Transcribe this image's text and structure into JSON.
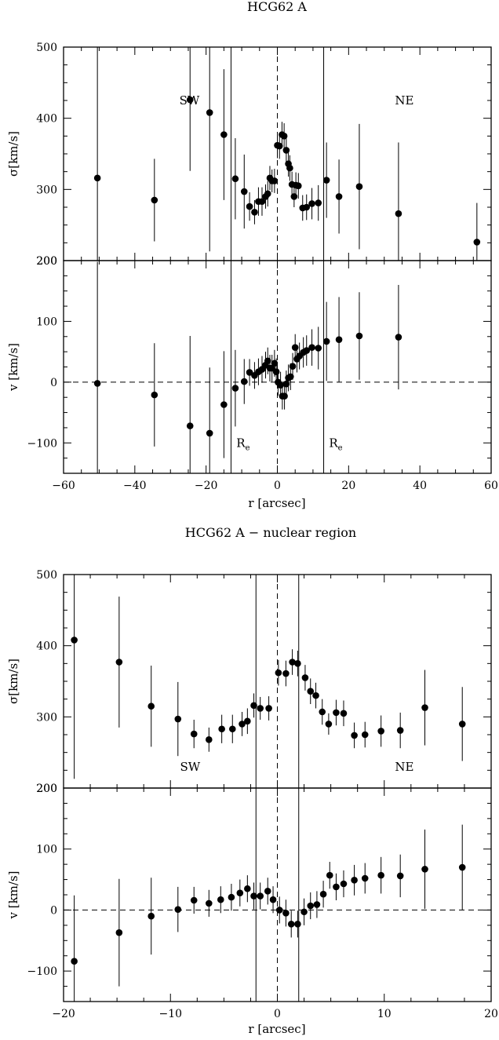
{
  "chart_data": [
    {
      "type": "scatter",
      "title": "HCG62 A",
      "xlabel": "r [arcsec]",
      "xlim": [
        -60,
        60
      ],
      "xticks": [
        -60,
        -40,
        -20,
        0,
        20,
        40,
        60
      ],
      "xtick_labels": [
        "−60",
        "−40",
        "−20",
        "0",
        "20",
        "40",
        "60"
      ],
      "panels": [
        {
          "id": "sigma",
          "ylabel": "σ[km/s]",
          "ylim": [
            200,
            500
          ],
          "yticks": [
            200,
            300,
            400,
            500
          ],
          "ytick_labels": [
            "200",
            "300",
            "400",
            "500"
          ],
          "annotations": [
            {
              "text": "SW",
              "x": -27.5,
              "y": 425
            },
            {
              "text": "NE",
              "x": 33,
              "y": 425
            }
          ],
          "vlines": [
            {
              "x": -13,
              "style": "solid"
            },
            {
              "x": 0,
              "style": "dashed"
            },
            {
              "x": 13,
              "style": "solid"
            }
          ],
          "points": [
            {
              "x": -50.5,
              "y": 316,
              "err": 200
            },
            {
              "x": -34.5,
              "y": 285,
              "err": 58
            },
            {
              "x": -24.5,
              "y": 426,
              "err": 100
            },
            {
              "x": -19,
              "y": 408,
              "err": 195
            },
            {
              "x": -15,
              "y": 377,
              "err": 92
            },
            {
              "x": -11.8,
              "y": 315,
              "err": 57
            },
            {
              "x": -9.3,
              "y": 297,
              "err": 52
            },
            {
              "x": -7.8,
              "y": 276,
              "err": 20
            },
            {
              "x": -6.4,
              "y": 268,
              "err": 17
            },
            {
              "x": -5.3,
              "y": 283,
              "err": 20
            },
            {
              "x": -4.3,
              "y": 283,
              "err": 20
            },
            {
              "x": -3.3,
              "y": 290,
              "err": 17
            },
            {
              "x": -2.7,
              "y": 294,
              "err": 18
            },
            {
              "x": -2.1,
              "y": 316,
              "err": 17
            },
            {
              "x": -1.5,
              "y": 312,
              "err": 16
            },
            {
              "x": -0.8,
              "y": 312,
              "err": 17
            },
            {
              "x": 0,
              "y": 362,
              "err": 18
            },
            {
              "x": 0.6,
              "y": 361,
              "err": 18
            },
            {
              "x": 1.3,
              "y": 377,
              "err": 18
            },
            {
              "x": 1.9,
              "y": 375,
              "err": 18
            },
            {
              "x": 2.5,
              "y": 355,
              "err": 18
            },
            {
              "x": 3.1,
              "y": 336,
              "err": 18
            },
            {
              "x": 3.5,
              "y": 330,
              "err": 18
            },
            {
              "x": 4.1,
              "y": 307,
              "err": 18
            },
            {
              "x": 4.7,
              "y": 290,
              "err": 15
            },
            {
              "x": 5.2,
              "y": 306,
              "err": 18
            },
            {
              "x": 5.9,
              "y": 305,
              "err": 18
            },
            {
              "x": 7.1,
              "y": 274,
              "err": 18
            },
            {
              "x": 8.2,
              "y": 275,
              "err": 18
            },
            {
              "x": 9.7,
              "y": 280,
              "err": 22
            },
            {
              "x": 11.5,
              "y": 281,
              "err": 25
            },
            {
              "x": 13.8,
              "y": 313,
              "err": 53
            },
            {
              "x": 17.3,
              "y": 290,
              "err": 52
            },
            {
              "x": 23,
              "y": 304,
              "err": 88
            },
            {
              "x": 34,
              "y": 266,
              "err": 100
            },
            {
              "x": 56,
              "y": 226,
              "err": 55
            }
          ]
        },
        {
          "id": "velocity",
          "ylabel": "v [km/s]",
          "ylim": [
            -150,
            200
          ],
          "yticks": [
            -100,
            0,
            100,
            200
          ],
          "ytick_labels": [
            "−100",
            "0",
            "100",
            "200"
          ],
          "annotations": [
            {
              "text": "R",
              "sub": "e",
              "x": -11.5,
              "y": -100
            },
            {
              "text": "R",
              "sub": "e",
              "x": 14.5,
              "y": -100
            }
          ],
          "vlines": [
            {
              "x": -13,
              "style": "solid"
            },
            {
              "x": 0,
              "style": "dashed"
            },
            {
              "x": 13,
              "style": "solid"
            }
          ],
          "hlines": [
            {
              "y": 0,
              "style": "dashed"
            }
          ],
          "points": [
            {
              "x": -50.5,
              "y": -2,
              "err": 200
            },
            {
              "x": -34.5,
              "y": -21,
              "err": 85
            },
            {
              "x": -24.5,
              "y": -72,
              "err": 148
            },
            {
              "x": -19,
              "y": -84,
              "err": 108
            },
            {
              "x": -15,
              "y": -37,
              "err": 88
            },
            {
              "x": -11.8,
              "y": -10,
              "err": 63
            },
            {
              "x": -9.3,
              "y": 1,
              "err": 37
            },
            {
              "x": -7.8,
              "y": 16,
              "err": 22
            },
            {
              "x": -6.4,
              "y": 11,
              "err": 22
            },
            {
              "x": -5.3,
              "y": 17,
              "err": 22
            },
            {
              "x": -4.3,
              "y": 21,
              "err": 22
            },
            {
              "x": -3.3,
              "y": 28,
              "err": 22
            },
            {
              "x": -2.7,
              "y": 35,
              "err": 22
            },
            {
              "x": -2.1,
              "y": 23,
              "err": 22
            },
            {
              "x": -1.5,
              "y": 23,
              "err": 22
            },
            {
              "x": -0.8,
              "y": 31,
              "err": 22
            },
            {
              "x": -0.3,
              "y": 17,
              "err": 22
            },
            {
              "x": 0.2,
              "y": 0,
              "err": 22
            },
            {
              "x": 0.9,
              "y": -5,
              "err": 22
            },
            {
              "x": 1.4,
              "y": -23,
              "err": 22
            },
            {
              "x": 2,
              "y": -23,
              "err": 22
            },
            {
              "x": 2.5,
              "y": -3,
              "err": 22
            },
            {
              "x": 3.1,
              "y": 7,
              "err": 22
            },
            {
              "x": 3.7,
              "y": 9,
              "err": 22
            },
            {
              "x": 4.3,
              "y": 26,
              "err": 22
            },
            {
              "x": 5,
              "y": 57,
              "err": 22
            },
            {
              "x": 5.5,
              "y": 38,
              "err": 22
            },
            {
              "x": 6.2,
              "y": 43,
              "err": 22
            },
            {
              "x": 7.3,
              "y": 49,
              "err": 25
            },
            {
              "x": 8.2,
              "y": 52,
              "err": 25
            },
            {
              "x": 9.7,
              "y": 57,
              "err": 30
            },
            {
              "x": 11.5,
              "y": 56,
              "err": 35
            },
            {
              "x": 13.8,
              "y": 67,
              "err": 65
            },
            {
              "x": 17.3,
              "y": 70,
              "err": 70
            },
            {
              "x": 23,
              "y": 76,
              "err": 72
            },
            {
              "x": 34,
              "y": 74,
              "err": 86
            }
          ]
        }
      ]
    },
    {
      "type": "scatter",
      "title": "HCG62 A − nuclear region",
      "xlabel": "r [arcsec]",
      "xlim": [
        -20,
        20
      ],
      "xticks": [
        -20,
        -10,
        0,
        10,
        20
      ],
      "xtick_labels": [
        "−20",
        "−10",
        "0",
        "10",
        "20"
      ],
      "panels": [
        {
          "id": "sigma",
          "ylabel": "σ[km/s]",
          "ylim": [
            200,
            500
          ],
          "yticks": [
            200,
            300,
            400,
            500
          ],
          "ytick_labels": [
            "200",
            "300",
            "400",
            "500"
          ],
          "annotations": [
            {
              "text": "SW",
              "x": -9.1,
              "y": 230
            },
            {
              "text": "NE",
              "x": 11,
              "y": 230
            }
          ],
          "vlines": [
            {
              "x": -2,
              "style": "solid"
            },
            {
              "x": 0,
              "style": "dashed"
            },
            {
              "x": 2,
              "style": "solid"
            }
          ],
          "points": [
            {
              "x": -19,
              "y": 408,
              "err": 195
            },
            {
              "x": -14.8,
              "y": 377,
              "err": 92
            },
            {
              "x": -11.8,
              "y": 315,
              "err": 57
            },
            {
              "x": -9.3,
              "y": 297,
              "err": 52
            },
            {
              "x": -7.8,
              "y": 276,
              "err": 20
            },
            {
              "x": -6.4,
              "y": 268,
              "err": 17
            },
            {
              "x": -5.2,
              "y": 283,
              "err": 20
            },
            {
              "x": -4.2,
              "y": 283,
              "err": 20
            },
            {
              "x": -3.3,
              "y": 290,
              "err": 17
            },
            {
              "x": -2.8,
              "y": 294,
              "err": 18
            },
            {
              "x": -2.2,
              "y": 316,
              "err": 17
            },
            {
              "x": -1.6,
              "y": 312,
              "err": 16
            },
            {
              "x": -0.8,
              "y": 312,
              "err": 17
            },
            {
              "x": 0.1,
              "y": 362,
              "err": 18
            },
            {
              "x": 0.8,
              "y": 361,
              "err": 18
            },
            {
              "x": 1.4,
              "y": 377,
              "err": 18
            },
            {
              "x": 1.9,
              "y": 375,
              "err": 18
            },
            {
              "x": 2.6,
              "y": 355,
              "err": 18
            },
            {
              "x": 3.1,
              "y": 336,
              "err": 18
            },
            {
              "x": 3.6,
              "y": 330,
              "err": 18
            },
            {
              "x": 4.2,
              "y": 307,
              "err": 18
            },
            {
              "x": 4.8,
              "y": 290,
              "err": 15
            },
            {
              "x": 5.5,
              "y": 306,
              "err": 18
            },
            {
              "x": 6.2,
              "y": 305,
              "err": 18
            },
            {
              "x": 7.2,
              "y": 274,
              "err": 18
            },
            {
              "x": 8.2,
              "y": 275,
              "err": 18
            },
            {
              "x": 9.7,
              "y": 280,
              "err": 22
            },
            {
              "x": 11.5,
              "y": 281,
              "err": 25
            },
            {
              "x": 13.8,
              "y": 313,
              "err": 53
            },
            {
              "x": 17.3,
              "y": 290,
              "err": 52
            }
          ]
        },
        {
          "id": "velocity",
          "ylabel": "v [km/s]",
          "ylim": [
            -150,
            200
          ],
          "yticks": [
            -100,
            0,
            100,
            200
          ],
          "ytick_labels": [
            "−100",
            "0",
            "100",
            "200"
          ],
          "annotations": [],
          "vlines": [
            {
              "x": -2,
              "style": "solid"
            },
            {
              "x": 0,
              "style": "dashed"
            },
            {
              "x": 2,
              "style": "solid"
            }
          ],
          "hlines": [
            {
              "y": 0,
              "style": "dashed"
            }
          ],
          "points": [
            {
              "x": -19,
              "y": -84,
              "err": 108
            },
            {
              "x": -14.8,
              "y": -37,
              "err": 88
            },
            {
              "x": -11.8,
              "y": -10,
              "err": 63
            },
            {
              "x": -9.3,
              "y": 1,
              "err": 37
            },
            {
              "x": -7.8,
              "y": 16,
              "err": 22
            },
            {
              "x": -6.4,
              "y": 11,
              "err": 22
            },
            {
              "x": -5.3,
              "y": 17,
              "err": 22
            },
            {
              "x": -4.3,
              "y": 21,
              "err": 22
            },
            {
              "x": -3.5,
              "y": 28,
              "err": 22
            },
            {
              "x": -2.8,
              "y": 35,
              "err": 22
            },
            {
              "x": -2.2,
              "y": 23,
              "err": 22
            },
            {
              "x": -1.6,
              "y": 23,
              "err": 22
            },
            {
              "x": -0.9,
              "y": 31,
              "err": 22
            },
            {
              "x": -0.4,
              "y": 17,
              "err": 22
            },
            {
              "x": 0.2,
              "y": 0,
              "err": 22
            },
            {
              "x": 0.8,
              "y": -5,
              "err": 22
            },
            {
              "x": 1.3,
              "y": -23,
              "err": 22
            },
            {
              "x": 1.9,
              "y": -23,
              "err": 22
            },
            {
              "x": 2.5,
              "y": -3,
              "err": 22
            },
            {
              "x": 3.1,
              "y": 7,
              "err": 22
            },
            {
              "x": 3.7,
              "y": 9,
              "err": 22
            },
            {
              "x": 4.3,
              "y": 26,
              "err": 22
            },
            {
              "x": 4.9,
              "y": 57,
              "err": 22
            },
            {
              "x": 5.5,
              "y": 38,
              "err": 22
            },
            {
              "x": 6.2,
              "y": 43,
              "err": 22
            },
            {
              "x": 7.2,
              "y": 49,
              "err": 25
            },
            {
              "x": 8.2,
              "y": 52,
              "err": 25
            },
            {
              "x": 9.7,
              "y": 57,
              "err": 30
            },
            {
              "x": 11.5,
              "y": 56,
              "err": 35
            },
            {
              "x": 13.8,
              "y": 67,
              "err": 65
            },
            {
              "x": 17.3,
              "y": 70,
              "err": 70
            }
          ]
        }
      ]
    }
  ]
}
